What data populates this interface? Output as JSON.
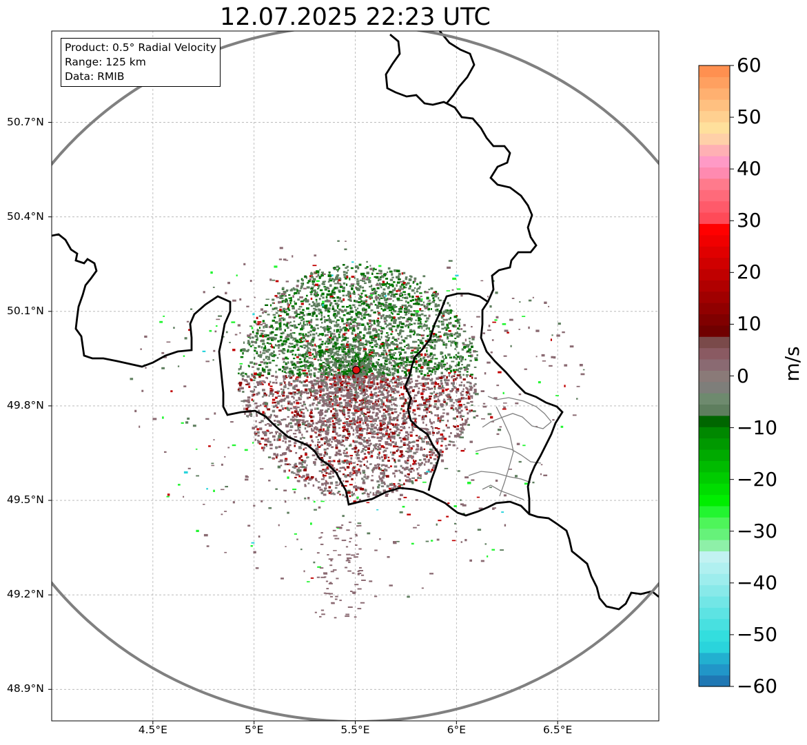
{
  "title": "12.07.2025 22:23 UTC",
  "info_box": {
    "product": "Product: 0.5° Radial Velocity",
    "range": "Range: 125 km",
    "data": "Data: RMIB"
  },
  "axes": {
    "lat_labels": [
      "50.7°N",
      "50.4°N",
      "50.1°N",
      "49.8°N",
      "49.5°N",
      "49.2°N",
      "48.9°N"
    ],
    "lat_values": [
      50.7,
      50.4,
      50.1,
      49.8,
      49.5,
      49.2,
      48.9
    ],
    "lon_labels": [
      "4.5°E",
      "5°E",
      "5.5°E",
      "6°E",
      "6.5°E"
    ],
    "lon_values": [
      4.5,
      5.0,
      5.5,
      6.0,
      6.5
    ],
    "lat_range": [
      48.8,
      50.99
    ],
    "lon_range": [
      4.0,
      7.0
    ],
    "grid": true
  },
  "radar_site": {
    "lat": 49.914,
    "lon": 5.505,
    "marker_color": "#dd1111"
  },
  "range_ring_color": "#808080",
  "colorbar": {
    "unit": "m/s",
    "min": -60,
    "max": 60,
    "tick_labels": [
      "60",
      "50",
      "40",
      "30",
      "20",
      "10",
      "0",
      "−10",
      "−20",
      "−30",
      "−40",
      "−50",
      "−60"
    ],
    "tick_values": [
      60,
      50,
      40,
      30,
      20,
      10,
      0,
      -10,
      -20,
      -30,
      -40,
      -50,
      -60
    ],
    "colors": [
      "#1f78b4",
      "#2196c8",
      "#22b0d0",
      "#2ad4dc",
      "#33dede",
      "#48e0e0",
      "#5de3e3",
      "#72e6e6",
      "#88e9e9",
      "#9deded",
      "#b0f0f0",
      "#c2f2f2",
      "#8ef0a8",
      "#66f27a",
      "#4ef55a",
      "#22f530",
      "#00ee00",
      "#00dd00",
      "#00cc00",
      "#00bb00",
      "#00aa00",
      "#009900",
      "#008800",
      "#006600",
      "#5e7e5e",
      "#6e8a6e",
      "#7e7e7a",
      "#8a7a78",
      "#8a6a72",
      "#8a5a62",
      "#7a4a4a",
      "#700000",
      "#800000",
      "#900000",
      "#a00000",
      "#b00000",
      "#c00000",
      "#d00000",
      "#e00000",
      "#f00000",
      "#ff0000",
      "#ff4a58",
      "#ff5a6a",
      "#ff6a7a",
      "#ff7a8c",
      "#ff8ab0",
      "#ff9ac6",
      "#ffb0b4",
      "#ffd0a8",
      "#ffe09c",
      "#ffd090",
      "#ffc080",
      "#ffb070",
      "#ffa060",
      "#ff9050"
    ]
  }
}
